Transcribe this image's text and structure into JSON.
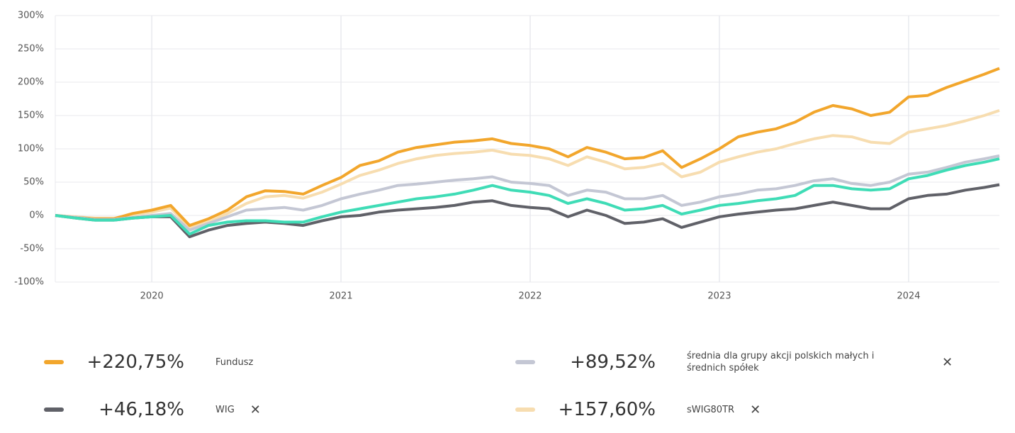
{
  "chart_data": {
    "type": "line",
    "x": [
      2019.49,
      2019.6,
      2019.7,
      2019.8,
      2019.9,
      2020.0,
      2020.1,
      2020.2,
      2020.3,
      2020.4,
      2020.5,
      2020.6,
      2020.7,
      2020.8,
      2020.9,
      2021.0,
      2021.1,
      2021.2,
      2021.3,
      2021.4,
      2021.5,
      2021.6,
      2021.7,
      2021.8,
      2021.9,
      2022.0,
      2022.1,
      2022.2,
      2022.3,
      2022.4,
      2022.5,
      2022.6,
      2022.7,
      2022.8,
      2022.9,
      2023.0,
      2023.1,
      2023.2,
      2023.3,
      2023.4,
      2023.5,
      2023.6,
      2023.7,
      2023.8,
      2023.9,
      2024.0,
      2024.1,
      2024.2,
      2024.3,
      2024.4,
      2024.48
    ],
    "xlim": [
      2019.49,
      2024.48
    ],
    "xticks": [
      2020,
      2021,
      2022,
      2023,
      2024
    ],
    "ylim": [
      -100,
      300
    ],
    "yticks": [
      {
        "value": -100,
        "label": "-100%"
      },
      {
        "value": -50,
        "label": "-50%"
      },
      {
        "value": 0,
        "label": "0%"
      },
      {
        "value": 50,
        "label": "50%"
      },
      {
        "value": 100,
        "label": "100%"
      },
      {
        "value": 150,
        "label": "150%"
      },
      {
        "value": 200,
        "label": "200%"
      },
      {
        "value": 250,
        "label": "250%"
      },
      {
        "value": 300,
        "label": "300%"
      }
    ],
    "grid": true,
    "series": [
      {
        "name": "Fundusz",
        "color": "#f2a62c",
        "legend_value": "+220,75%",
        "values": [
          0,
          -3,
          -5,
          -5,
          3,
          8,
          15,
          -15,
          -5,
          8,
          28,
          37,
          36,
          32,
          45,
          57,
          75,
          82,
          95,
          102,
          106,
          110,
          112,
          115,
          108,
          105,
          100,
          88,
          102,
          95,
          85,
          87,
          97,
          72,
          85,
          100,
          118,
          125,
          130,
          140,
          155,
          165,
          160,
          150,
          155,
          178,
          180,
          192,
          202,
          212,
          220.75
        ]
      },
      {
        "name": "WIG",
        "color": "#606168",
        "legend_value": "+46,18%",
        "values": [
          0,
          -4,
          -7,
          -7,
          -4,
          -2,
          -2,
          -32,
          -22,
          -15,
          -12,
          -10,
          -12,
          -15,
          -8,
          -2,
          0,
          5,
          8,
          10,
          12,
          15,
          20,
          22,
          15,
          12,
          10,
          -2,
          8,
          0,
          -12,
          -10,
          -5,
          -18,
          -10,
          -2,
          2,
          5,
          8,
          10,
          15,
          20,
          15,
          10,
          10,
          25,
          30,
          32,
          38,
          42,
          46.18
        ]
      },
      {
        "name": "średnia dla grupy akcji polskich małych i średnich spółek",
        "color": "#c4c7d4",
        "legend_value": "+89,52%",
        "values": [
          0,
          -3,
          -6,
          -6,
          -3,
          0,
          3,
          -22,
          -12,
          -2,
          8,
          10,
          12,
          8,
          15,
          25,
          32,
          38,
          45,
          47,
          50,
          53,
          55,
          58,
          50,
          48,
          45,
          30,
          38,
          35,
          25,
          25,
          30,
          15,
          20,
          28,
          32,
          38,
          40,
          45,
          52,
          55,
          48,
          45,
          50,
          62,
          65,
          72,
          80,
          85,
          89.52
        ]
      },
      {
        "name": "sWIG80TR",
        "color": "#f7ddb0",
        "legend_value": "+157,60%",
        "values": [
          0,
          -2,
          -4,
          -4,
          1,
          5,
          11,
          -18,
          -10,
          3,
          18,
          28,
          30,
          26,
          35,
          47,
          60,
          68,
          78,
          85,
          90,
          93,
          95,
          98,
          92,
          90,
          85,
          75,
          88,
          80,
          70,
          72,
          78,
          58,
          65,
          80,
          88,
          95,
          100,
          108,
          115,
          120,
          118,
          110,
          108,
          125,
          130,
          135,
          142,
          150,
          157.6
        ]
      },
      {
        "color": "#3fdcb6",
        "values": [
          0,
          -4,
          -7,
          -7,
          -4,
          -2,
          0,
          -28,
          -15,
          -10,
          -8,
          -8,
          -10,
          -10,
          -2,
          5,
          10,
          15,
          20,
          25,
          28,
          32,
          38,
          45,
          38,
          35,
          30,
          18,
          25,
          18,
          8,
          10,
          15,
          2,
          8,
          15,
          18,
          22,
          25,
          30,
          45,
          45,
          40,
          38,
          40,
          55,
          60,
          68,
          75,
          80,
          85
        ]
      }
    ]
  }
}
